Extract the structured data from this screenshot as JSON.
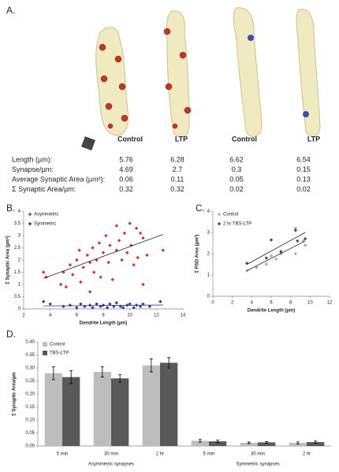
{
  "panel_a": {
    "label": "A.",
    "columns": [
      "Control",
      "LTP",
      "Control",
      "LTP"
    ],
    "table": {
      "rows": [
        {
          "label": "Length (µm):",
          "values": [
            5.76,
            6.28,
            6.62,
            6.54
          ]
        },
        {
          "label": "Synapse/µm:",
          "values": [
            4.69,
            2.7,
            0.3,
            0.15
          ]
        },
        {
          "label": "Average Synaptic Area (µm²):",
          "values": [
            0.06,
            0.11,
            0.05,
            0.13
          ]
        },
        {
          "label": "Σ Synaptic Area/µm:",
          "values": [
            0.32,
            0.32,
            0.02,
            0.02
          ]
        }
      ]
    }
  },
  "chart_data": [
    {
      "type": "scatter",
      "panel_label": "B.",
      "x_label": "Dendrite Length (µm)",
      "y_label": "Σ Synaptic Area (µm²)",
      "xlim": [
        2,
        14
      ],
      "xticks": [
        2,
        4,
        6,
        8,
        10,
        12,
        14
      ],
      "ylim": [
        0,
        4
      ],
      "yticks": [
        0,
        0.5,
        1,
        1.5,
        2,
        2.5,
        3,
        3.5,
        4
      ],
      "grid": false,
      "series": [
        {
          "name": "Asymmetric",
          "color": "#e8282b",
          "marker": "diamond",
          "x": [
            3.5,
            3.7,
            4.8,
            5,
            5.2,
            5.5,
            5.7,
            6,
            6.2,
            6.3,
            6.5,
            6.8,
            7,
            7,
            7.2,
            7.3,
            7.5,
            7.7,
            7.8,
            8,
            8.2,
            8.4,
            8.5,
            8.7,
            9,
            9,
            9.2,
            9.4,
            9.6,
            9.8,
            10,
            10.1,
            10.3,
            10.5,
            10.6,
            10.8,
            11,
            11,
            11.3,
            12.5
          ],
          "values": [
            1.5,
            1.3,
            1.0,
            1.5,
            0.9,
            1.8,
            1.4,
            2.0,
            2.4,
            1.1,
            1.7,
            2.2,
            0.7,
            1.9,
            2.5,
            1.5,
            2.0,
            2.7,
            1.3,
            2.3,
            3.0,
            1.9,
            2.6,
            1.2,
            2.4,
            3.4,
            2.8,
            2.0,
            3.1,
            2.3,
            3.5,
            2.6,
            1.8,
            3.3,
            2.1,
            3.1,
            2.9,
            1.0,
            2.2,
            2.4
          ],
          "trendline": {
            "x": [
              3.5,
              12.5
            ],
            "y": [
              1.25,
              3.05
            ]
          }
        },
        {
          "name": "Symmetric",
          "color": "#2a3f9e",
          "marker": "diamond",
          "x": [
            3.5,
            4,
            5,
            5.5,
            6,
            6.3,
            6.6,
            7,
            7.2,
            7.5,
            7.8,
            8,
            8.3,
            8.5,
            8.8,
            9,
            9.3,
            9.5,
            9.8,
            10,
            10.3,
            10.5,
            10.8,
            11,
            11.5,
            12.3
          ],
          "values": [
            0.3,
            0.2,
            0.1,
            0.15,
            0.05,
            0.2,
            0.1,
            0.15,
            0.05,
            0.2,
            0.1,
            0.15,
            0.05,
            0.2,
            0.1,
            0.25,
            0.1,
            0.05,
            0.15,
            0.2,
            0.05,
            0.15,
            0.1,
            0.2,
            0.1,
            0.3
          ],
          "trendline": {
            "x": [
              3.5,
              12.5
            ],
            "y": [
              0.12,
              0.16
            ]
          }
        }
      ]
    },
    {
      "type": "scatter",
      "panel_label": "C.",
      "x_label": "Dendrite Length (µm)",
      "y_label": "Σ PSD Area (µm²)",
      "xlim": [
        0,
        12
      ],
      "xticks": [
        0,
        2,
        4,
        6,
        8,
        10,
        12
      ],
      "ylim": [
        0,
        4
      ],
      "yticks": [
        0,
        1,
        2,
        3,
        4
      ],
      "grid": false,
      "series": [
        {
          "name": "Control",
          "color": "#b0b0b0",
          "marker": "circle",
          "x": [
            3.5,
            4.5,
            5.5,
            6,
            6.5,
            7,
            8.5,
            8.5,
            9.5,
            9.3
          ],
          "values": [
            1.2,
            1.35,
            1.5,
            1.9,
            1.75,
            2.0,
            2.0,
            3.2,
            2.4,
            2.6
          ],
          "trendline": {
            "x": [
              3.5,
              9.5
            ],
            "y": [
              1.2,
              2.6
            ]
          }
        },
        {
          "name": "2 hr TBS-LTP",
          "color": "#4a4a4a",
          "marker": "diamond",
          "x": [
            3.5,
            5.5,
            6,
            7,
            8.5,
            8.7,
            9.5
          ],
          "values": [
            1.55,
            1.8,
            2.65,
            2.1,
            3.1,
            2.6,
            2.7
          ],
          "trendline": {
            "x": [
              3.5,
              9.5
            ],
            "y": [
              1.5,
              3.0
            ]
          }
        }
      ]
    },
    {
      "type": "bar",
      "panel_label": "D.",
      "y_label": "Σ Synaptic Area/µm",
      "categories": [
        "5 min",
        "30 min",
        "2 hr",
        "5 min",
        "30 min",
        "2 hr"
      ],
      "groups": [
        "Asymmetric synapses",
        "Symmetric synapses"
      ],
      "ylim": [
        0,
        0.4
      ],
      "yticks": [
        {
          "value": 0,
          "label": "0.00"
        },
        {
          "value": 0.05,
          "label": "0.05"
        },
        {
          "value": 0.1,
          "label": "0.10"
        },
        {
          "value": 0.15,
          "label": "0.15"
        },
        {
          "value": 0.2,
          "label": "0.20"
        },
        {
          "value": 0.25,
          "label": "0.25"
        },
        {
          "value": 0.3,
          "label": "0.30"
        },
        {
          "value": 0.35,
          "label": "0.35"
        },
        {
          "value": 0.4,
          "label": "0.40"
        }
      ],
      "grid": false,
      "series": [
        {
          "name": "Control",
          "color": "#bdbdbd",
          "values": [
            0.28,
            0.285,
            0.31,
            0.02,
            0.012,
            0.012
          ],
          "errors": [
            0.025,
            0.02,
            0.025,
            0.005,
            0.003,
            0.004
          ]
        },
        {
          "name": "TBS-LTP",
          "color": "#595959",
          "values": [
            0.265,
            0.26,
            0.32,
            0.018,
            0.014,
            0.015
          ],
          "errors": [
            0.025,
            0.015,
            0.02,
            0.005,
            0.003,
            0.004
          ]
        }
      ]
    }
  ]
}
